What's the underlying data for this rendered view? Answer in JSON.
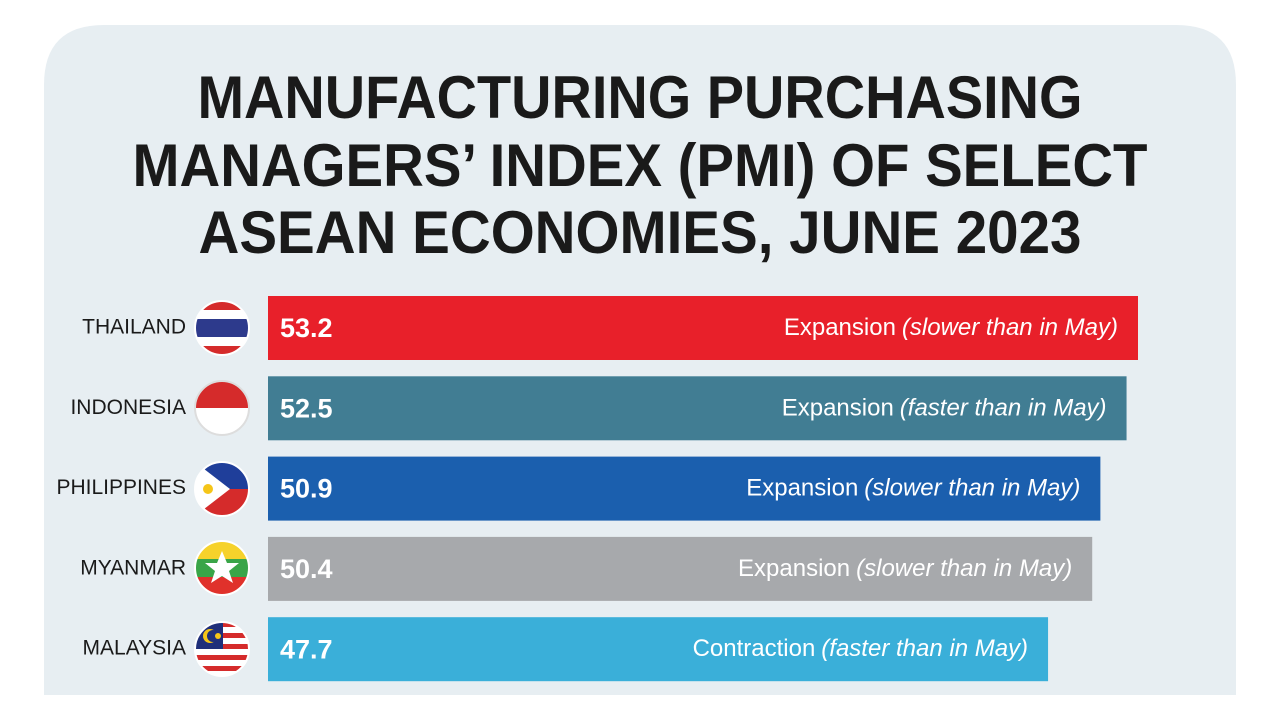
{
  "chart_data": {
    "type": "hbar",
    "title": [
      "MANUFACTURING PURCHASING",
      "MANAGERS’ INDEX (PMI) OF SELECT",
      "ASEAN ECONOMIES, JUNE 2023"
    ],
    "categories": [
      "THAILAND",
      "INDONESIA",
      "PHILIPPINES",
      "MYANMAR",
      "MALAYSIA"
    ],
    "values": [
      53.2,
      52.5,
      50.9,
      50.4,
      47.7
    ],
    "colors": [
      "#e8202a",
      "#417d93",
      "#1b5fae",
      "#a7a9ac",
      "#3aafd9"
    ],
    "statuses": [
      "Expansion",
      "Expansion",
      "Expansion",
      "Expansion",
      "Contraction"
    ],
    "notes": [
      "(slower than in May)",
      "(faster than in May)",
      "(slower than in May)",
      "(slower than in May)",
      "(faster than in May)"
    ],
    "highlight_index": 2,
    "highlight_color": "#1a6aa8"
  }
}
